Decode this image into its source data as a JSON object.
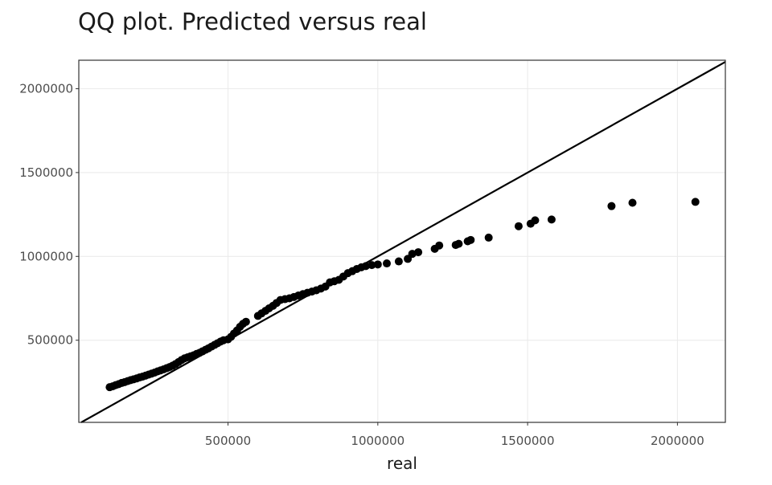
{
  "chart_data": {
    "type": "scatter",
    "title": "QQ plot. Predicted versus real",
    "xlabel": "real",
    "ylabel": "",
    "xlim": [
      2000,
      2160000
    ],
    "ylim": [
      10000,
      2170000
    ],
    "xticks": [
      500000,
      1000000,
      1500000,
      2000000
    ],
    "xtick_labels": [
      "500000",
      "1000000",
      "1500000",
      "2000000"
    ],
    "yticks": [
      500000,
      1000000,
      1500000,
      2000000
    ],
    "ytick_labels": [
      "500000",
      "1000000",
      "1500000",
      "2000000"
    ],
    "grid": true,
    "reference_line": {
      "type": "identity",
      "slope": 1,
      "intercept": 0
    },
    "points": [
      [
        105000,
        220000
      ],
      [
        115000,
        225000
      ],
      [
        125000,
        232000
      ],
      [
        135000,
        238000
      ],
      [
        145000,
        245000
      ],
      [
        155000,
        250000
      ],
      [
        165000,
        256000
      ],
      [
        175000,
        262000
      ],
      [
        185000,
        267000
      ],
      [
        195000,
        272000
      ],
      [
        205000,
        278000
      ],
      [
        215000,
        283000
      ],
      [
        225000,
        289000
      ],
      [
        235000,
        295000
      ],
      [
        245000,
        301000
      ],
      [
        255000,
        307000
      ],
      [
        265000,
        314000
      ],
      [
        275000,
        320000
      ],
      [
        285000,
        326000
      ],
      [
        295000,
        333000
      ],
      [
        305000,
        340000
      ],
      [
        315000,
        348000
      ],
      [
        325000,
        358000
      ],
      [
        335000,
        370000
      ],
      [
        345000,
        382000
      ],
      [
        355000,
        392000
      ],
      [
        365000,
        398000
      ],
      [
        375000,
        404000
      ],
      [
        385000,
        410000
      ],
      [
        395000,
        418000
      ],
      [
        405000,
        425000
      ],
      [
        415000,
        434000
      ],
      [
        425000,
        443000
      ],
      [
        435000,
        452000
      ],
      [
        445000,
        462000
      ],
      [
        455000,
        472000
      ],
      [
        465000,
        482000
      ],
      [
        475000,
        492000
      ],
      [
        485000,
        500000
      ],
      [
        500000,
        505000
      ],
      [
        510000,
        520000
      ],
      [
        520000,
        540000
      ],
      [
        530000,
        558000
      ],
      [
        540000,
        580000
      ],
      [
        550000,
        598000
      ],
      [
        560000,
        610000
      ],
      [
        600000,
        645000
      ],
      [
        612000,
        660000
      ],
      [
        625000,
        675000
      ],
      [
        637000,
        690000
      ],
      [
        650000,
        705000
      ],
      [
        662000,
        722000
      ],
      [
        675000,
        740000
      ],
      [
        690000,
        745000
      ],
      [
        705000,
        750000
      ],
      [
        720000,
        758000
      ],
      [
        735000,
        767000
      ],
      [
        750000,
        775000
      ],
      [
        765000,
        783000
      ],
      [
        780000,
        790000
      ],
      [
        795000,
        798000
      ],
      [
        810000,
        808000
      ],
      [
        825000,
        820000
      ],
      [
        840000,
        845000
      ],
      [
        855000,
        852000
      ],
      [
        870000,
        860000
      ],
      [
        885000,
        880000
      ],
      [
        900000,
        900000
      ],
      [
        915000,
        912000
      ],
      [
        930000,
        925000
      ],
      [
        945000,
        935000
      ],
      [
        960000,
        942000
      ],
      [
        980000,
        948000
      ],
      [
        1000000,
        952000
      ],
      [
        1030000,
        958000
      ],
      [
        1070000,
        970000
      ],
      [
        1100000,
        985000
      ],
      [
        1115000,
        1015000
      ],
      [
        1135000,
        1025000
      ],
      [
        1190000,
        1045000
      ],
      [
        1205000,
        1065000
      ],
      [
        1260000,
        1068000
      ],
      [
        1270000,
        1075000
      ],
      [
        1300000,
        1090000
      ],
      [
        1310000,
        1098000
      ],
      [
        1370000,
        1112000
      ],
      [
        1470000,
        1180000
      ],
      [
        1510000,
        1195000
      ],
      [
        1525000,
        1215000
      ],
      [
        1580000,
        1220000
      ],
      [
        1780000,
        1300000
      ],
      [
        1850000,
        1320000
      ],
      [
        2060000,
        1325000
      ]
    ]
  }
}
